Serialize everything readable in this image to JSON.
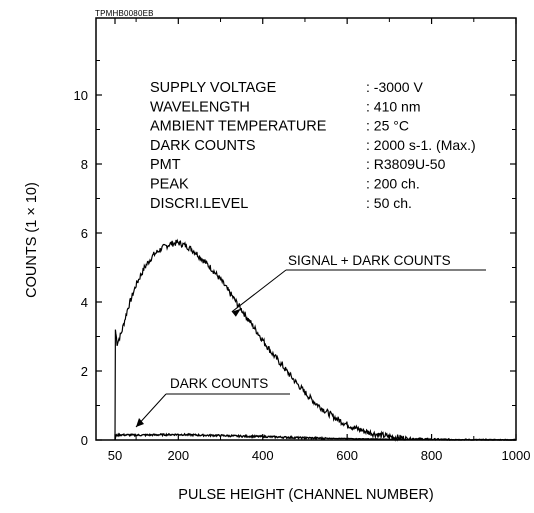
{
  "figure": {
    "code": "TPMHB0080EB"
  },
  "info_table": [
    {
      "label": "SUPPLY VOLTAGE",
      "value": ": -3000 V"
    },
    {
      "label": "WAVELENGTH",
      "value": ": 410 nm"
    },
    {
      "label": "AMBIENT TEMPERATURE",
      "value": ": 25 °C"
    },
    {
      "label": "DARK COUNTS",
      "value": ": 2000 s-1. (Max.)"
    },
    {
      "label": "PMT",
      "value": ": R3809U-50"
    },
    {
      "label": "PEAK",
      "value": ": 200 ch."
    },
    {
      "label": "DISCRI.LEVEL",
      "value": ": 50 ch."
    }
  ],
  "chart_data": {
    "type": "line",
    "title": "",
    "xlabel": "PULSE HEIGHT (CHANNEL NUMBER)",
    "ylabel": "COUNTS (1 × 10)",
    "xlim": [
      0,
      1000
    ],
    "ylim": [
      0,
      12
    ],
    "xticks": [
      50,
      200,
      400,
      600,
      800,
      1000
    ],
    "yticks": [
      0,
      2,
      4,
      6,
      8,
      10
    ],
    "grid": false,
    "legend": "none",
    "line_color": "#000000",
    "series": [
      {
        "name": "SIGNAL + DARK COUNTS",
        "x": [
          50,
          51,
          55,
          65,
          80,
          100,
          120,
          140,
          160,
          180,
          200,
          220,
          240,
          260,
          280,
          300,
          320,
          340,
          360,
          380,
          400,
          420,
          440,
          460,
          480,
          500,
          520,
          540,
          560,
          580,
          600,
          620,
          640,
          660,
          680,
          700,
          720,
          740,
          760,
          780,
          800,
          850,
          900,
          1000
        ],
        "y": [
          0.0,
          3.2,
          2.8,
          3.1,
          3.8,
          4.5,
          5.0,
          5.35,
          5.55,
          5.68,
          5.72,
          5.62,
          5.45,
          5.2,
          4.95,
          4.65,
          4.3,
          3.95,
          3.6,
          3.25,
          2.9,
          2.55,
          2.25,
          1.95,
          1.65,
          1.38,
          1.12,
          0.92,
          0.74,
          0.58,
          0.45,
          0.34,
          0.26,
          0.19,
          0.14,
          0.1,
          0.07,
          0.05,
          0.04,
          0.03,
          0.02,
          0.01,
          0.0,
          0.0
        ]
      },
      {
        "name": "DARK COUNTS",
        "x": [
          50,
          52,
          60,
          100,
          150,
          200,
          250,
          300,
          350,
          400,
          450,
          500,
          600,
          700,
          800,
          1000
        ],
        "y": [
          0.0,
          0.13,
          0.15,
          0.14,
          0.15,
          0.16,
          0.14,
          0.13,
          0.11,
          0.1,
          0.08,
          0.06,
          0.04,
          0.02,
          0.01,
          0.0
        ]
      }
    ],
    "annotations": [
      {
        "text": "SIGNAL + DARK COUNTS",
        "points_to": {
          "x": 360,
          "y": 3.6
        }
      },
      {
        "text": "DARK COUNTS",
        "points_to": {
          "x": 70,
          "y": 0.15
        }
      }
    ]
  }
}
